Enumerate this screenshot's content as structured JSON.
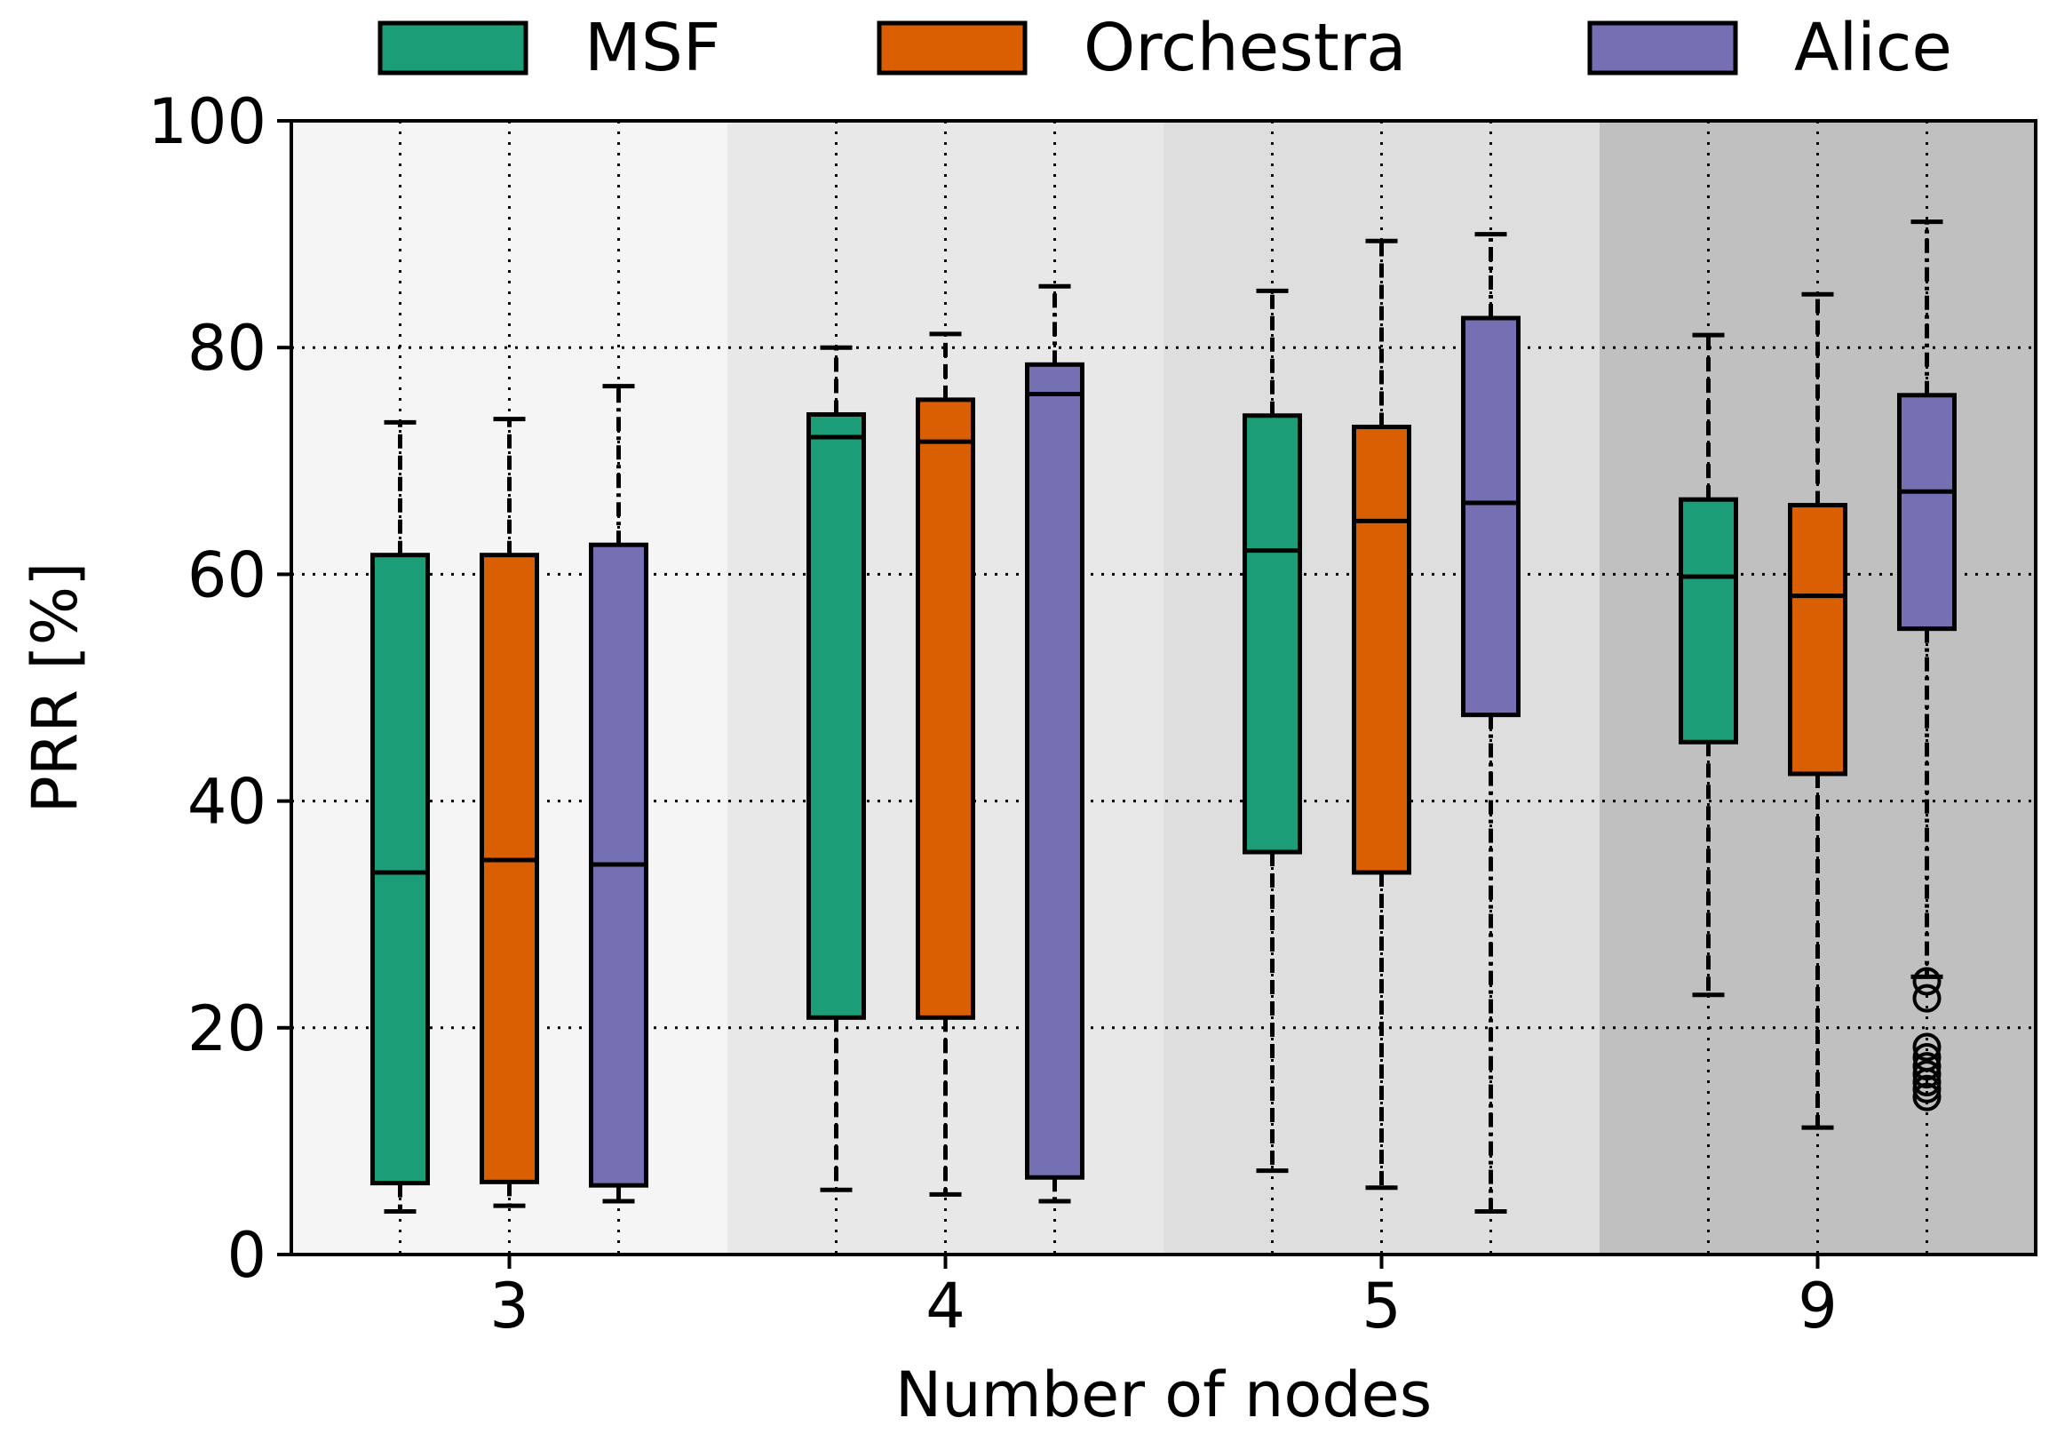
{
  "chart_data": {
    "type": "box",
    "title": "",
    "xlabel": "Number of nodes",
    "ylabel": "PRR [%]",
    "ylim": [
      0,
      100
    ],
    "yticks": [
      0,
      20,
      40,
      60,
      80,
      100
    ],
    "grid": true,
    "legend_position": "top",
    "categories": [
      "3",
      "4",
      "5",
      "9"
    ],
    "category_shading": [
      "#f5f5f5",
      "#e8e8e8",
      "#dedede",
      "#c0c0c0"
    ],
    "series": [
      {
        "name": "MSF",
        "color": "#1b9e77",
        "whisker_style": "dashed",
        "boxes": [
          {
            "whislo": 3.8,
            "q1": 6.3,
            "med": 33.7,
            "q3": 61.7,
            "whishi": 73.4,
            "fliers": []
          },
          {
            "whislo": 5.7,
            "q1": 20.9,
            "med": 72.1,
            "q3": 74.1,
            "whishi": 80.0,
            "fliers": []
          },
          {
            "whislo": 7.4,
            "q1": 35.5,
            "med": 62.1,
            "q3": 74.0,
            "whishi": 85.0,
            "fliers": []
          },
          {
            "whislo": 22.9,
            "q1": 45.2,
            "med": 59.8,
            "q3": 66.6,
            "whishi": 81.1,
            "fliers": []
          }
        ]
      },
      {
        "name": "Orchestra",
        "color": "#d95f02",
        "whisker_style": "dashed",
        "boxes": [
          {
            "whislo": 4.3,
            "q1": 6.4,
            "med": 34.8,
            "q3": 61.7,
            "whishi": 73.7,
            "fliers": []
          },
          {
            "whislo": 5.3,
            "q1": 20.9,
            "med": 71.7,
            "q3": 75.4,
            "whishi": 81.2,
            "fliers": []
          },
          {
            "whislo": 5.9,
            "q1": 33.7,
            "med": 64.7,
            "q3": 73.0,
            "whishi": 89.4,
            "fliers": []
          },
          {
            "whislo": 11.2,
            "q1": 42.4,
            "med": 58.1,
            "q3": 66.1,
            "whishi": 84.7,
            "fliers": []
          }
        ]
      },
      {
        "name": "Alice",
        "color": "#7570b3",
        "whisker_style": "dashdot",
        "boxes": [
          {
            "whislo": 4.7,
            "q1": 6.1,
            "med": 34.4,
            "q3": 62.6,
            "whishi": 76.6,
            "fliers": []
          },
          {
            "whislo": 4.7,
            "q1": 6.8,
            "med": 75.9,
            "q3": 78.5,
            "whishi": 85.4,
            "fliers": []
          },
          {
            "whislo": 3.8,
            "q1": 47.6,
            "med": 66.3,
            "q3": 82.6,
            "whishi": 90.0,
            "fliers": []
          },
          {
            "whislo": 24.5,
            "q1": 55.2,
            "med": 67.3,
            "q3": 75.8,
            "whishi": 91.1,
            "fliers": [
              24.1,
              22.6,
              18.3,
              17.4,
              16.6,
              15.9,
              15.2,
              14.6,
              13.9
            ]
          }
        ]
      }
    ]
  }
}
